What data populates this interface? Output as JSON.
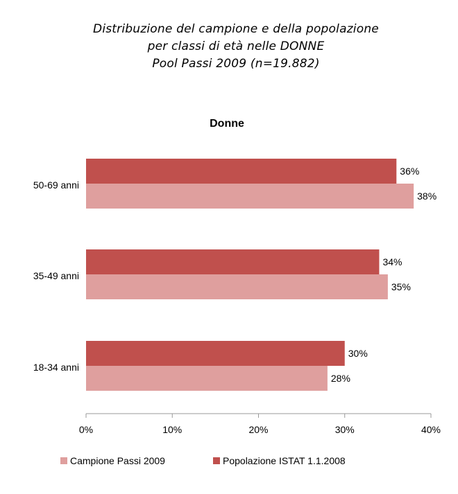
{
  "header": {
    "title_lines": [
      "Distribuzione del campione e della popolazione",
      "per classi di età nelle DONNE",
      "Pool Passi 2009 (n=19.882)"
    ]
  },
  "chart_data": {
    "type": "bar",
    "orientation": "horizontal",
    "title": "Donne",
    "categories": [
      "50-69 anni",
      "35-49 anni",
      "18-34 anni"
    ],
    "series": [
      {
        "name": "Popolazione ISTAT 1.1.2008",
        "values": [
          36,
          34,
          30
        ],
        "data_labels": [
          "36%",
          "34%",
          "30%"
        ],
        "color": "#c0504d"
      },
      {
        "name": "Campione Passi 2009",
        "values": [
          38,
          35,
          28
        ],
        "data_labels": [
          "38%",
          "35%",
          "28%"
        ],
        "color": "#df9f9e"
      }
    ],
    "x_axis": {
      "min": 0,
      "max": 40,
      "ticks": [
        0,
        10,
        20,
        30,
        40
      ],
      "tick_labels": [
        "0%",
        "10%",
        "20%",
        "30%",
        "40%"
      ]
    },
    "xlabel": "",
    "ylabel": "",
    "grid": false,
    "legend": {
      "position": "bottom",
      "entries": [
        "Campione Passi 2009",
        "Popolazione ISTAT 1.1.2008"
      ]
    }
  }
}
